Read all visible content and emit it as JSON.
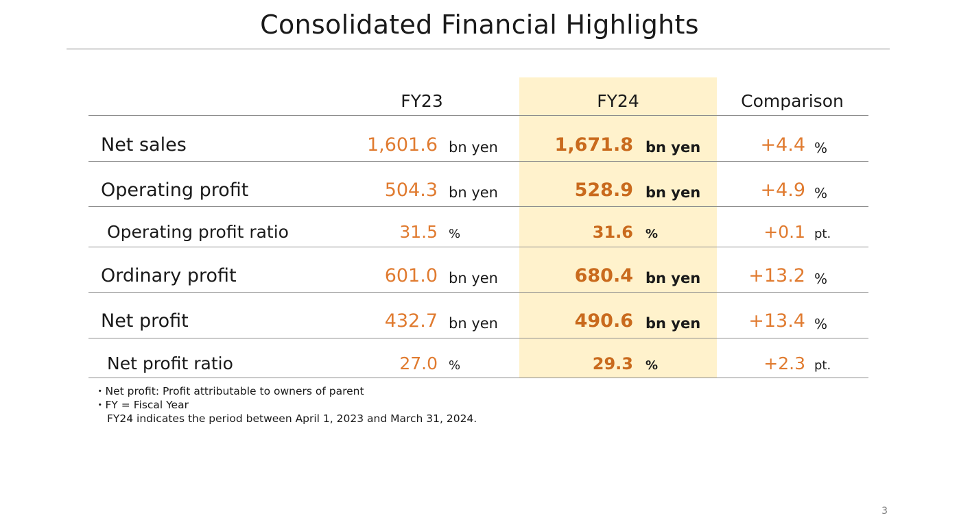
{
  "title": "Consolidated Financial Highlights",
  "columns": {
    "fy23": "FY23",
    "fy24": "FY24",
    "comparison": "Comparison"
  },
  "rows": [
    {
      "label": "Net sales",
      "fy23_value": "1,601.6",
      "fy23_unit": "bn yen",
      "fy24_value": "1,671.8",
      "fy24_unit": "bn yen",
      "comparison_value": "+4.4",
      "comparison_unit": "%"
    },
    {
      "label": "Operating profit",
      "fy23_value": "504.3",
      "fy23_unit": "bn yen",
      "fy24_value": "528.9",
      "fy24_unit": "bn yen",
      "comparison_value": "+4.9",
      "comparison_unit": "%"
    },
    {
      "label": "Operating profit ratio",
      "fy23_value": "31.5",
      "fy23_unit": "%",
      "fy24_value": "31.6",
      "fy24_unit": "%",
      "comparison_value": "+0.1",
      "comparison_unit": "pt."
    },
    {
      "label": "Ordinary profit",
      "fy23_value": "601.0",
      "fy23_unit": "bn yen",
      "fy24_value": "680.4",
      "fy24_unit": "bn yen",
      "comparison_value": "+13.2",
      "comparison_unit": "%"
    },
    {
      "label": "Net profit",
      "fy23_value": "432.7",
      "fy23_unit": "bn yen",
      "fy24_value": "490.6",
      "fy24_unit": "bn yen",
      "comparison_value": "+13.4",
      "comparison_unit": "%"
    },
    {
      "label": "Net profit ratio",
      "fy23_value": "27.0",
      "fy23_unit": "%",
      "fy24_value": "29.3",
      "fy24_unit": "%",
      "comparison_value": "+2.3",
      "comparison_unit": "pt."
    }
  ],
  "notes": [
    "・Net profit: Profit attributable to owners of parent",
    "・FY = Fiscal Year",
    "FY24 indicates the period between April 1, 2023 and March 31, 2024."
  ],
  "page_number": "3",
  "colors": {
    "accent_value": "#e07b30",
    "fy24_value": "#c96a1d",
    "fy24_highlight": "#fff2cc",
    "rule": "#8c8c8c"
  }
}
